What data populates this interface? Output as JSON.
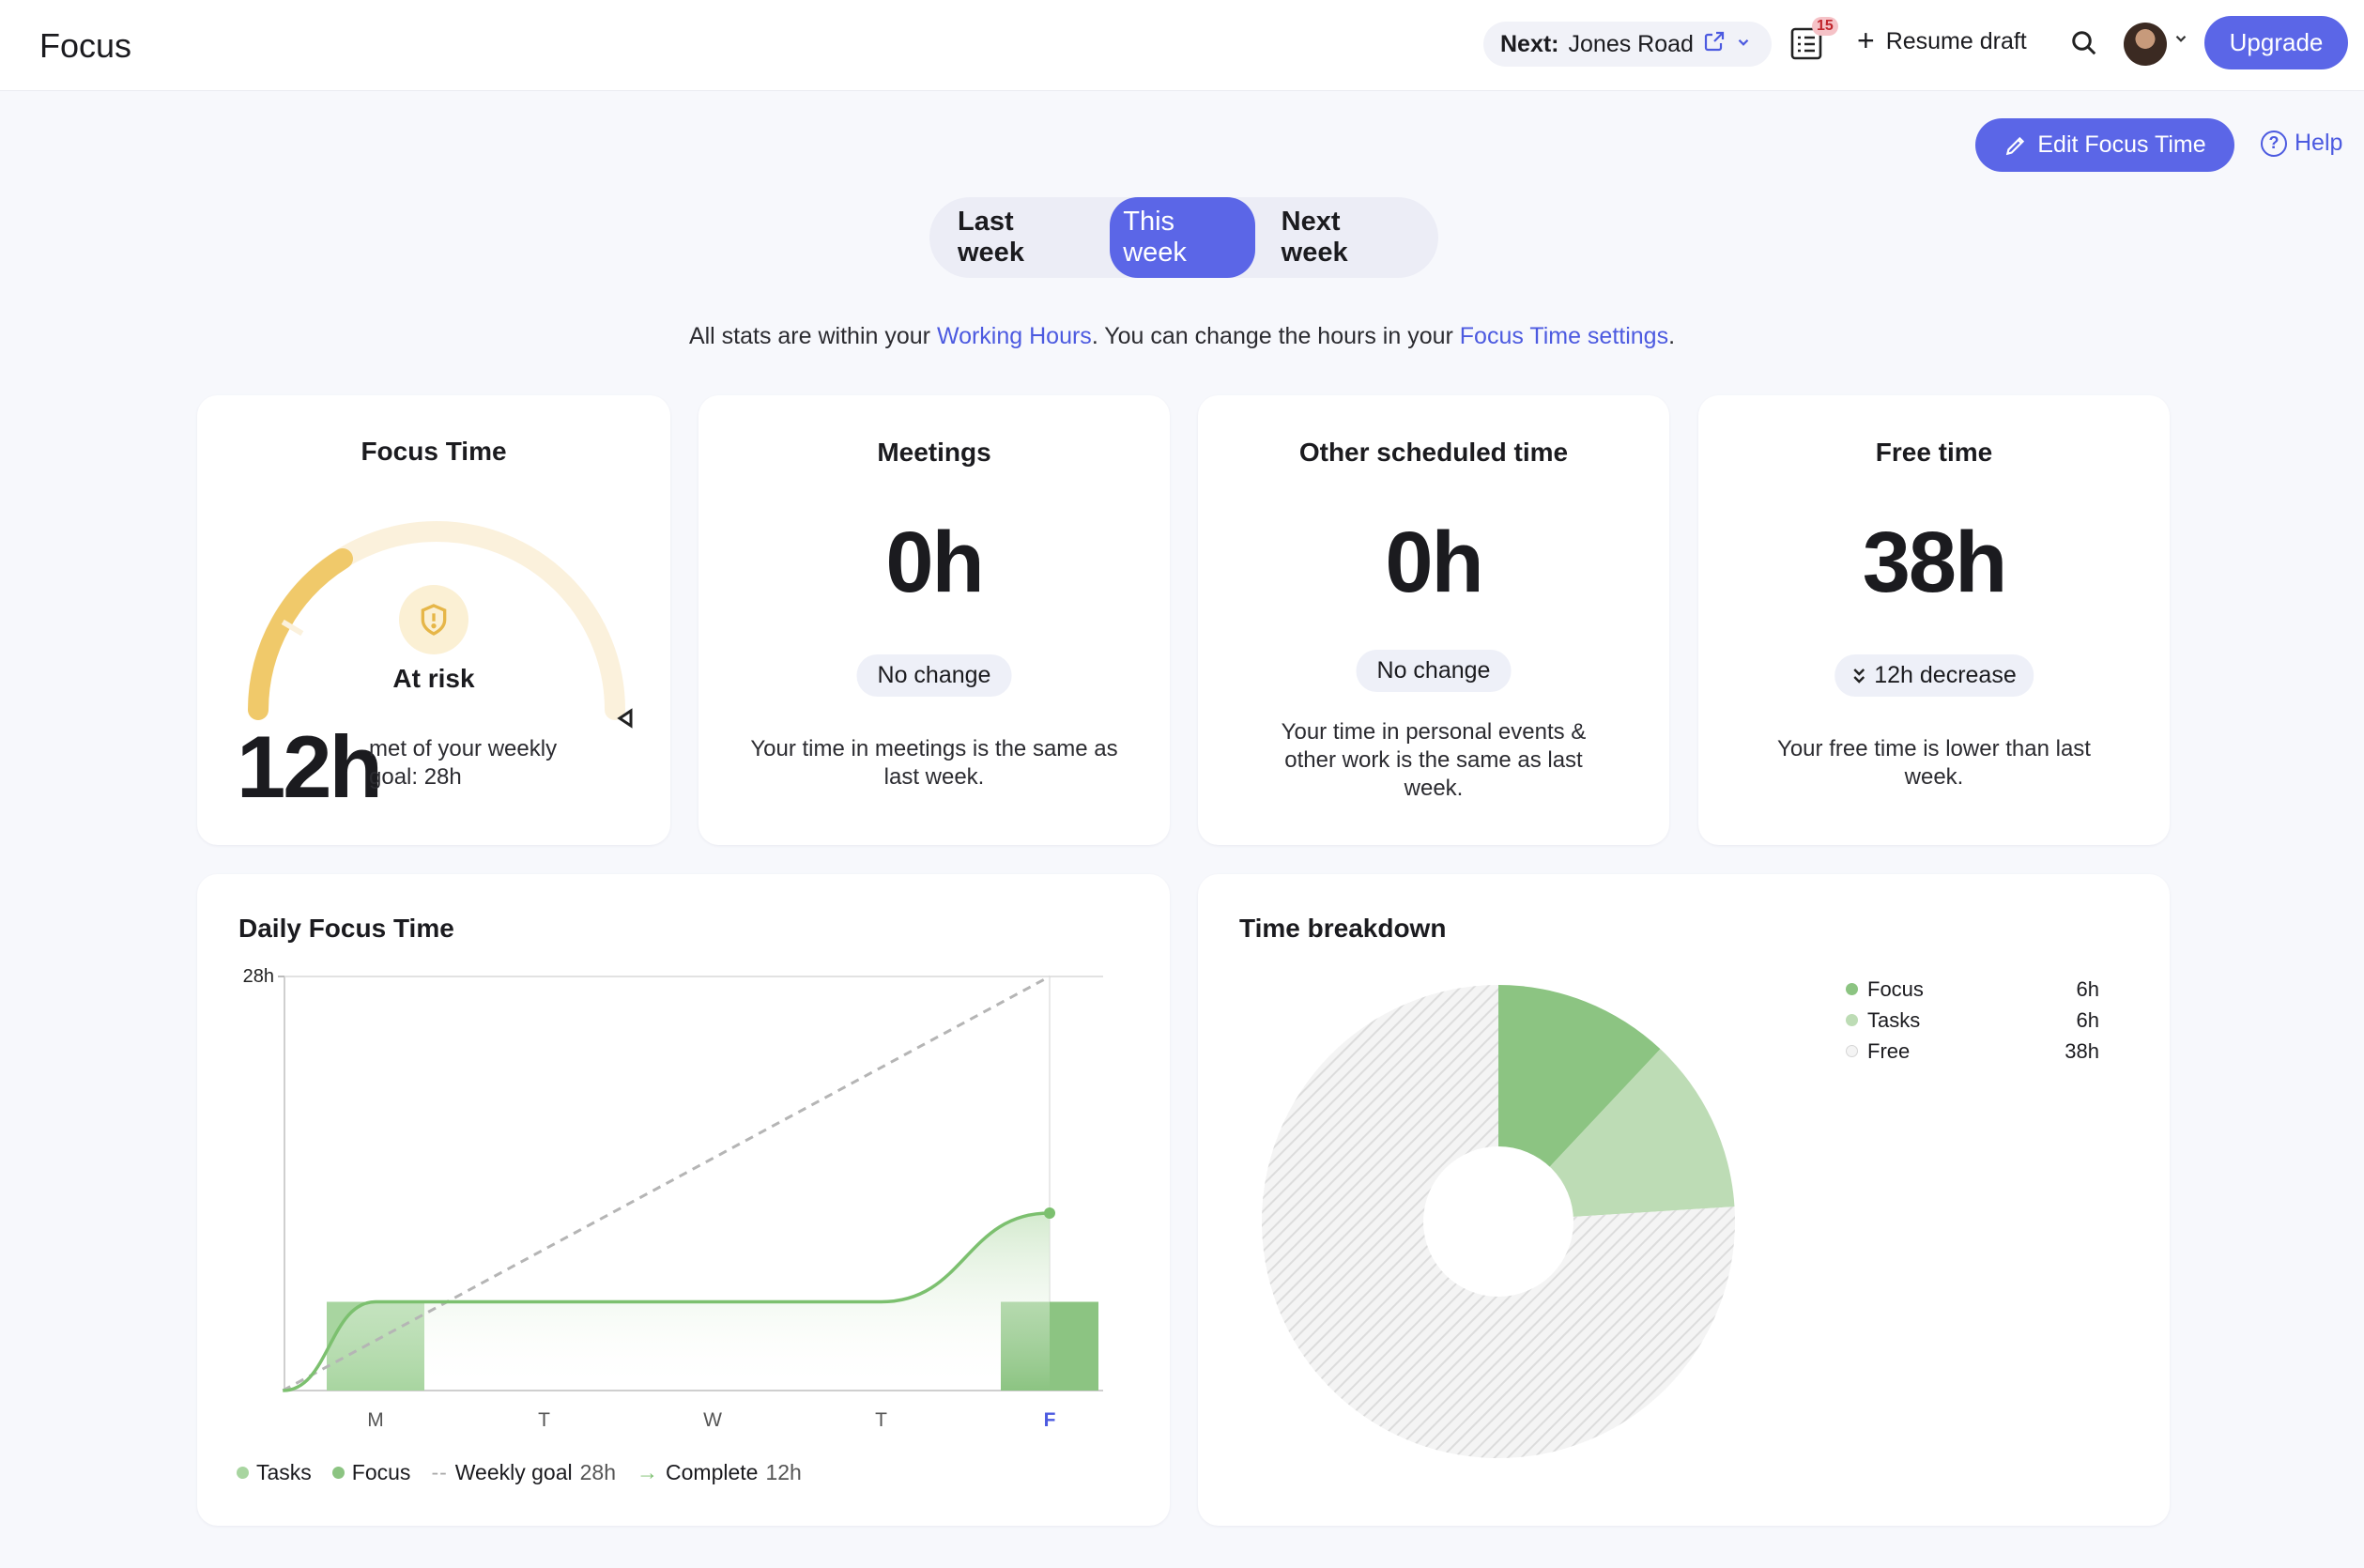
{
  "header": {
    "app_title": "Focus",
    "next_label": "Next:",
    "next_value": "Jones Road",
    "calendar_badge": "15",
    "resume_label": "Resume draft",
    "upgrade_label": "Upgrade"
  },
  "actions": {
    "edit_label": "Edit Focus Time",
    "help_label": "Help"
  },
  "week_tabs": [
    {
      "label": "Last week",
      "active": false
    },
    {
      "label": "This week",
      "active": true
    },
    {
      "label": "Next week",
      "active": false
    }
  ],
  "note": {
    "part1": "All stats are within your ",
    "link1": "Working Hours",
    "part2": ". You can change the hours in your ",
    "link2": "Focus Time settings",
    "part3": "."
  },
  "cards": {
    "focus": {
      "title": "Focus Time",
      "status": "At risk",
      "value": "12h",
      "goal_text": "met of your weekly goal: 28h",
      "progress_fraction": 0.43
    },
    "meetings": {
      "title": "Meetings",
      "value": "0h",
      "chip": "No change",
      "desc": "Your time in meetings is the same as last week."
    },
    "other": {
      "title": "Other scheduled time",
      "value": "0h",
      "chip": "No change",
      "desc": "Your time in personal events & other work is the same as last week."
    },
    "free": {
      "title": "Free time",
      "value": "38h",
      "chip": "12h decrease",
      "desc": "Your free time is lower than last week."
    }
  },
  "daily_chart": {
    "title": "Daily Focus Time",
    "legend": {
      "tasks": "Tasks",
      "focus": "Focus",
      "goal": "Weekly goal",
      "goal_value": "28h",
      "complete": "Complete",
      "complete_value": "12h"
    }
  },
  "breakdown": {
    "title": "Time breakdown",
    "items": [
      {
        "label": "Focus",
        "value": "6h"
      },
      {
        "label": "Tasks",
        "value": "6h"
      },
      {
        "label": "Free",
        "value": "38h"
      }
    ]
  },
  "chart_data": [
    {
      "type": "bar",
      "title": "Daily Focus Time",
      "categories": [
        "M",
        "T",
        "W",
        "T",
        "F"
      ],
      "highlight_category_index": 4,
      "ylim": [
        0,
        28
      ],
      "y_tick_labels": [
        "28h"
      ],
      "series": [
        {
          "name": "Tasks",
          "type": "bar",
          "values": [
            6,
            0,
            0,
            0,
            0
          ],
          "color": "#a8d5a0"
        },
        {
          "name": "Focus",
          "type": "bar",
          "values": [
            0,
            0,
            0,
            0,
            6
          ],
          "color": "#8cc482"
        },
        {
          "name": "Weekly goal",
          "type": "line",
          "x": [
            -0.55,
            4
          ],
          "values": [
            0,
            28
          ],
          "color": "#b5b5b5"
        },
        {
          "name": "Complete",
          "type": "line",
          "x": [
            -0.55,
            0,
            0.5,
            1,
            2,
            3,
            4
          ],
          "values": [
            0,
            6,
            6,
            6,
            6,
            6,
            12
          ],
          "color": "#7cc06f"
        }
      ],
      "grid": false
    },
    {
      "type": "pie",
      "title": "Time breakdown",
      "categories": [
        "Focus",
        "Tasks",
        "Free"
      ],
      "values": [
        6,
        6,
        38
      ],
      "colors": [
        "#8cc482",
        "#bddcb5",
        "#e4e4e4"
      ]
    }
  ],
  "colors": {
    "accent": "#5b66e7",
    "gauge_track": "#fbf1dc",
    "gauge_fill": "#f0c96a",
    "focus_green": "#8cc482",
    "tasks_green": "#a8d5a0"
  }
}
